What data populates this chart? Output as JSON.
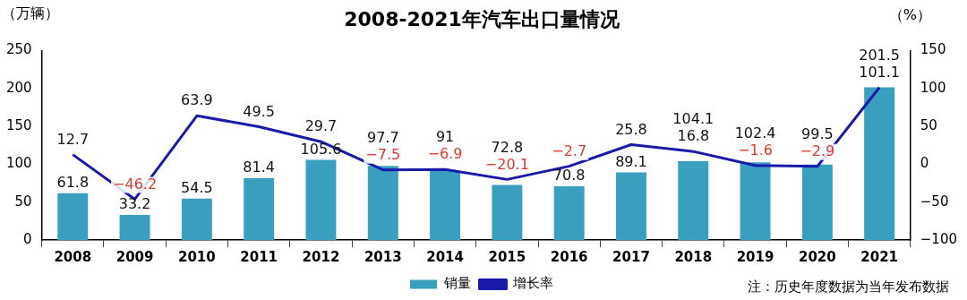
{
  "chart_data": {
    "type": "bar",
    "title": "2008-2021年汽车出口量情况",
    "ylabel": "（万辆）",
    "y2label": "（%）",
    "categories": [
      "2008",
      "2009",
      "2010",
      "2011",
      "2012",
      "2013",
      "2014",
      "2015",
      "2016",
      "2017",
      "2018",
      "2019",
      "2020",
      "2021"
    ],
    "series": [
      {
        "name": "销量",
        "color": "#3a9fbf",
        "values": [
          61.8,
          33.2,
          54.5,
          81.4,
          105.6,
          97.7,
          91,
          72.8,
          70.8,
          89.1,
          104.1,
          102.4,
          99.5,
          201.5
        ]
      },
      {
        "name": "增长率",
        "type": "line",
        "axis": "y2",
        "color": "#1a1aaa",
        "values": [
          12.7,
          -46.2,
          63.9,
          49.5,
          29.7,
          -7.5,
          -6.9,
          -20.1,
          -2.7,
          25.8,
          16.8,
          -1.6,
          -2.9,
          101.1
        ]
      }
    ],
    "ylim": [
      0,
      250
    ],
    "yticks": [
      0,
      50,
      100,
      150,
      200,
      250
    ],
    "y2lim": [
      -100,
      150
    ],
    "y2ticks": [
      -100,
      -50,
      0,
      50,
      100,
      150
    ],
    "data_labels": true,
    "legend": "bottom",
    "grid": false,
    "marker": "none",
    "line_style": "solid",
    "annotations": [
      "注：历史年度数据为当年发布数据"
    ]
  }
}
